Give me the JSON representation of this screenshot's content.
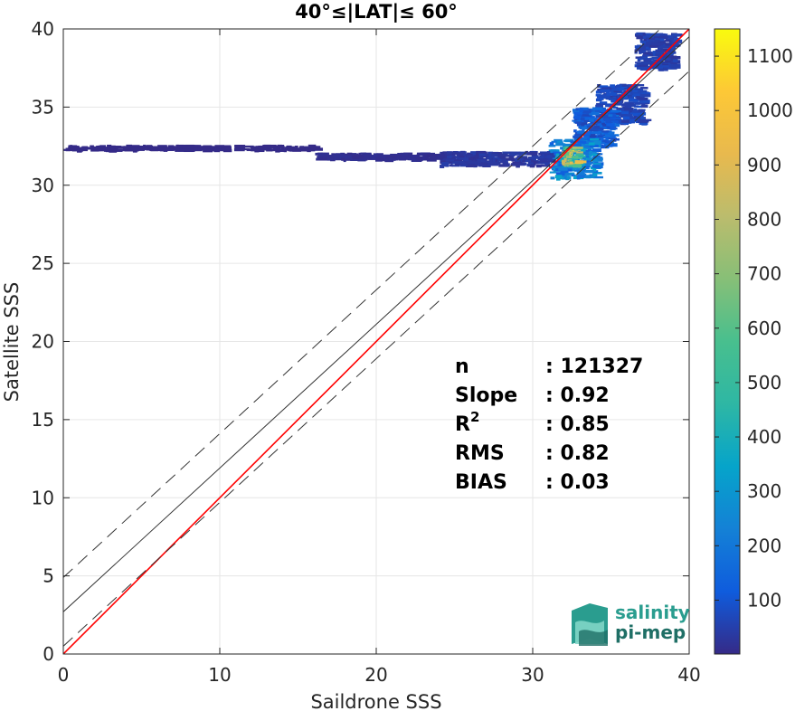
{
  "chart_data": {
    "type": "heatmap",
    "title": "40°≤|LAT|≤ 60°",
    "xlabel": "Saildrone SSS",
    "ylabel": "Satellite SSS",
    "xlim": [
      0,
      40
    ],
    "ylim": [
      0,
      40
    ],
    "xticks": [
      0,
      10,
      20,
      30,
      40
    ],
    "yticks": [
      0,
      5,
      10,
      15,
      20,
      25,
      30,
      35,
      40
    ],
    "grid": true,
    "colorbar": {
      "range": [
        1,
        1150
      ],
      "ticks": [
        100,
        200,
        300,
        400,
        500,
        600,
        700,
        800,
        900,
        1000,
        1100
      ],
      "colormap": "parula"
    },
    "lines": [
      {
        "kind": "identity",
        "color": "#ff0000",
        "style": "solid",
        "slope": 1,
        "intercept": 0
      },
      {
        "kind": "fit",
        "color": "#333333",
        "style": "solid",
        "slope": 0.92,
        "intercept": 2.7
      },
      {
        "kind": "upper-bound",
        "color": "#333333",
        "style": "dashed",
        "slope": 0.92,
        "intercept": 4.9
      },
      {
        "kind": "lower-bound",
        "color": "#333333",
        "style": "dashed",
        "slope": 0.92,
        "intercept": 0.5
      }
    ],
    "density_clusters": [
      {
        "x": [
          36.5,
          39
        ],
        "y": [
          37.5,
          39.8
        ],
        "level": 60
      },
      {
        "x": [
          34,
          37
        ],
        "y": [
          34,
          36.5
        ],
        "level": 80
      },
      {
        "x": [
          32.5,
          35
        ],
        "y": [
          32.5,
          35
        ],
        "level": 150
      },
      {
        "x": [
          31,
          34
        ],
        "y": [
          30.5,
          33
        ],
        "level": 300
      },
      {
        "x": [
          31.8,
          32.8
        ],
        "y": [
          31.3,
          32.5
        ],
        "level": 900
      },
      {
        "x": [
          24,
          31
        ],
        "y": [
          31.3,
          32.2
        ],
        "level": 40
      },
      {
        "x": [
          16,
          24
        ],
        "y": [
          31.7,
          32.1
        ],
        "level": 15
      },
      {
        "x": [
          0,
          16
        ],
        "y": [
          32.3,
          32.6
        ],
        "level": 3
      }
    ],
    "stats": [
      {
        "label": "n",
        "sup": "",
        "value": ": 121327"
      },
      {
        "label": "Slope",
        "sup": "",
        "value": ": 0.92"
      },
      {
        "label": "R",
        "sup": "2",
        "value": ": 0.85"
      },
      {
        "label": "RMS",
        "sup": "",
        "value": ": 0.82"
      },
      {
        "label": "BIAS",
        "sup": "",
        "value": ": 0.03"
      }
    ]
  },
  "logo": {
    "line1": "salinity",
    "line2": "pi-mep",
    "colors": [
      "#2a9d8f",
      "#7fd6c6",
      "#1f6f66"
    ]
  }
}
